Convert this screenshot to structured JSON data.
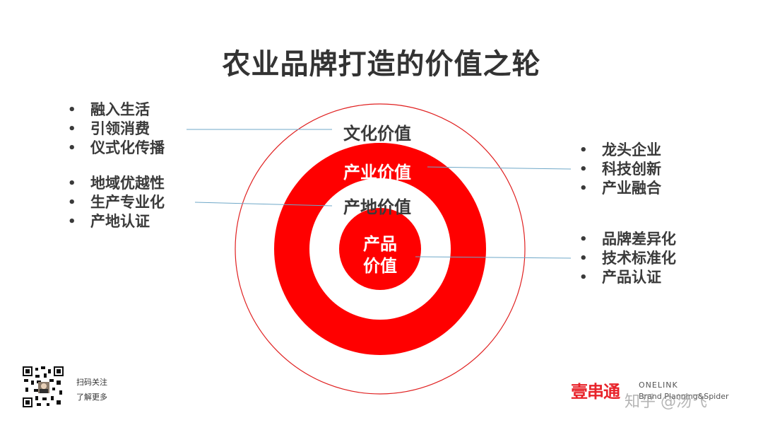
{
  "title": "农业品牌打造的价值之轮",
  "rings": {
    "outer": "文化价值",
    "second": "产业价值",
    "third": "产地价值",
    "center": [
      "产品",
      "价值"
    ]
  },
  "groups": {
    "culture": [
      "融入生活",
      "引领消费",
      "仪式化传播"
    ],
    "origin": [
      "地域优越性",
      "生产专业化",
      "产地认证"
    ],
    "industry": [
      "龙头企业",
      "科技创新",
      "产业融合"
    ],
    "product": [
      "品牌差异化",
      "技术标准化",
      "产品认证"
    ]
  },
  "bullet": "•",
  "footer": {
    "qr_line1": "扫码关注",
    "qr_line2": "了解更多",
    "brand_name": "壹串通",
    "brand_sub1": "ONELINK",
    "brand_sub2": "Brand Planning&Spider",
    "watermark": "知乎 @汤飞"
  },
  "colors": {
    "red": "#ff0000",
    "outer_ring": "#e02020",
    "leader": "#6fa8c8"
  }
}
